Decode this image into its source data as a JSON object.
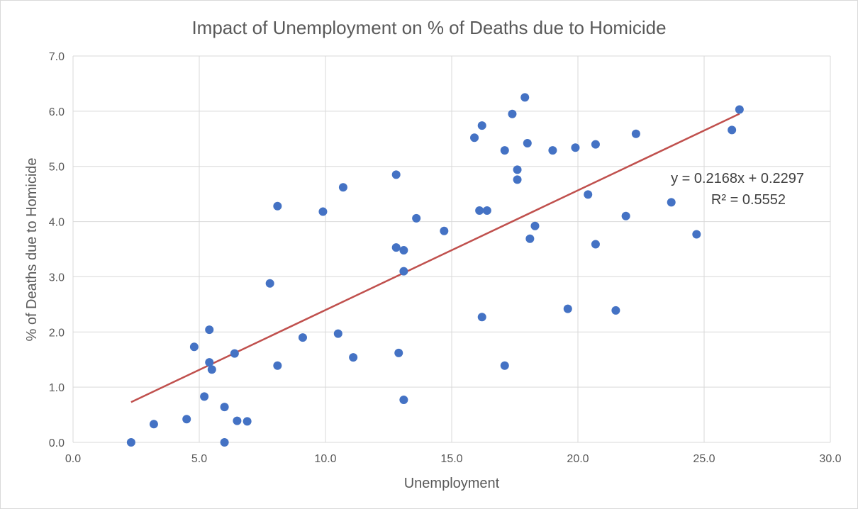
{
  "chart_data": {
    "type": "scatter",
    "title": "Impact of Unemployment on % of Deaths due to Homicide",
    "xlabel": "Unemployment",
    "ylabel": "% of Deaths due to Homicide",
    "xlim": [
      0,
      30
    ],
    "ylim": [
      0,
      7
    ],
    "x_ticks": [
      "0.0",
      "5.0",
      "10.0",
      "15.0",
      "20.0",
      "25.0",
      "30.0"
    ],
    "y_ticks": [
      "0.0",
      "1.0",
      "2.0",
      "3.0",
      "4.0",
      "5.0",
      "6.0",
      "7.0"
    ],
    "grid": true,
    "marker_color": "#4472C4",
    "trendline": {
      "type": "linear",
      "slope": 0.2168,
      "intercept": 0.2297,
      "x_range": [
        2.3,
        26.4
      ],
      "color": "#C0504D",
      "equation": "y = 0.2168x + 0.2297",
      "r_squared": "R² = 0.5552"
    },
    "points": [
      [
        2.3,
        0.0
      ],
      [
        3.2,
        0.33
      ],
      [
        4.5,
        0.42
      ],
      [
        4.8,
        1.73
      ],
      [
        5.2,
        0.83
      ],
      [
        5.4,
        2.04
      ],
      [
        5.4,
        1.45
      ],
      [
        5.5,
        1.32
      ],
      [
        6.0,
        0.64
      ],
      [
        6.0,
        0.0
      ],
      [
        6.4,
        1.61
      ],
      [
        6.5,
        0.39
      ],
      [
        6.9,
        0.38
      ],
      [
        7.8,
        2.88
      ],
      [
        8.1,
        4.28
      ],
      [
        8.1,
        1.39
      ],
      [
        9.1,
        1.9
      ],
      [
        9.9,
        4.18
      ],
      [
        10.5,
        1.97
      ],
      [
        10.7,
        4.62
      ],
      [
        11.1,
        1.54
      ],
      [
        12.8,
        4.85
      ],
      [
        12.8,
        3.53
      ],
      [
        12.9,
        1.62
      ],
      [
        13.1,
        3.48
      ],
      [
        13.1,
        0.77
      ],
      [
        13.1,
        3.1
      ],
      [
        13.6,
        4.06
      ],
      [
        14.7,
        3.83
      ],
      [
        15.9,
        5.52
      ],
      [
        16.1,
        4.2
      ],
      [
        16.2,
        5.74
      ],
      [
        16.2,
        2.27
      ],
      [
        16.4,
        4.2
      ],
      [
        17.1,
        5.29
      ],
      [
        17.1,
        1.39
      ],
      [
        17.4,
        5.95
      ],
      [
        17.6,
        4.94
      ],
      [
        17.6,
        4.76
      ],
      [
        17.9,
        6.25
      ],
      [
        18.0,
        5.42
      ],
      [
        18.1,
        3.69
      ],
      [
        18.3,
        3.92
      ],
      [
        19.0,
        5.29
      ],
      [
        19.6,
        2.42
      ],
      [
        19.9,
        5.34
      ],
      [
        20.4,
        4.49
      ],
      [
        20.7,
        5.4
      ],
      [
        20.7,
        3.59
      ],
      [
        21.5,
        2.39
      ],
      [
        21.9,
        4.1
      ],
      [
        22.3,
        5.59
      ],
      [
        23.7,
        4.35
      ],
      [
        24.7,
        3.77
      ],
      [
        26.1,
        5.66
      ],
      [
        26.4,
        6.03
      ]
    ]
  }
}
